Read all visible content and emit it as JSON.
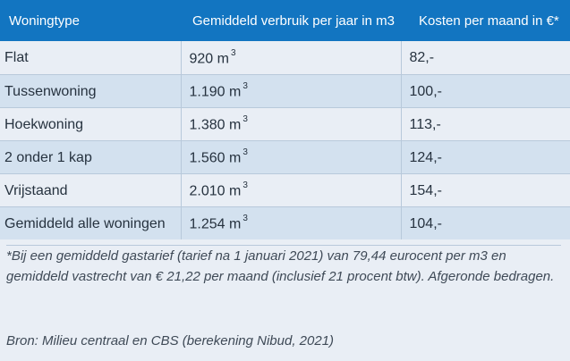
{
  "table": {
    "headers": [
      "Woningtype",
      "Gemiddeld verbruik per jaar in m3",
      "Kosten per maand in €*"
    ],
    "unit": "m",
    "unit_exponent": "3",
    "rows": [
      {
        "type": "Flat",
        "verbruik": "920",
        "kosten": "82,-"
      },
      {
        "type": "Tussenwoning",
        "verbruik": "1.190",
        "kosten": "100,-"
      },
      {
        "type": "Hoekwoning",
        "verbruik": "1.380",
        "kosten": "113,-"
      },
      {
        "type": "2 onder 1 kap",
        "verbruik": "1.560",
        "kosten": "124,-"
      },
      {
        "type": "Vrijstaand",
        "verbruik": "2.010",
        "kosten": "154,-"
      },
      {
        "type": "Gemiddeld alle woningen",
        "verbruik": "1.254",
        "kosten": "104,-"
      }
    ]
  },
  "footnote": "*Bij een gemiddeld gastarief (tarief na 1 januari 2021) van 79,44 eurocent per m3 en gemiddeld vastrecht van € 21,22 per maand (inclusief 21 procent btw). Afgeronde bedragen.",
  "source": "Bron: Milieu centraal en CBS (berekening Nibud, 2021)",
  "colors": {
    "header_bg": "#1275c1",
    "header_text": "#ffffff",
    "row_light": "#e9eef5",
    "row_dark": "#d3e1ef",
    "body_text": "#26323f"
  }
}
